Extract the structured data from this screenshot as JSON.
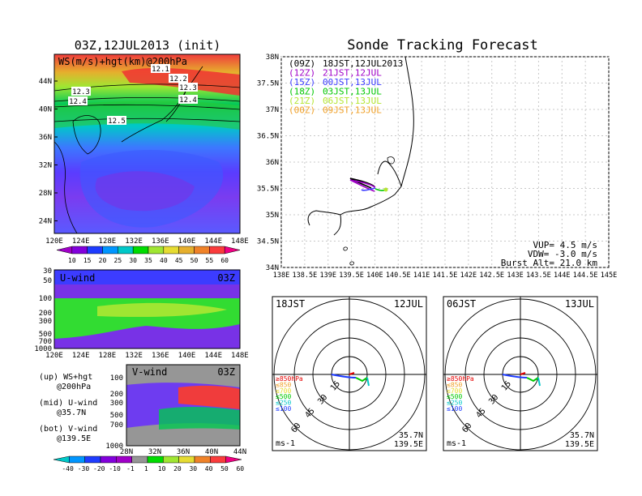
{
  "map_panel": {
    "title": "03Z,12JUL2013 (init)",
    "label": "WS(m/s)+hgt(km)@200hPa",
    "lat_ticks": [
      "44N",
      "40N",
      "36N",
      "32N",
      "28N",
      "24N"
    ],
    "lon_ticks": [
      "120E",
      "124E",
      "128E",
      "132E",
      "136E",
      "140E",
      "144E",
      "148E"
    ],
    "contour_labels": [
      "12.1",
      "12.2",
      "12.3",
      "12.3",
      "12.4",
      "12.4",
      "12.5"
    ],
    "colorbar": [
      "10",
      "15",
      "20",
      "25",
      "30",
      "35",
      "40",
      "45",
      "50",
      "55",
      "60"
    ],
    "colorbar_colors": [
      "#a000c8",
      "#8200dc",
      "#1e3cff",
      "#0096ff",
      "#00c8c8",
      "#00dc00",
      "#a0e632",
      "#e6dc32",
      "#e6af2d",
      "#f08228",
      "#fa3c3c",
      "#f00082"
    ]
  },
  "uwind_panel": {
    "label": "U-wind",
    "time": "03Z",
    "p_ticks": [
      "30",
      "50",
      "100",
      "200",
      "300",
      "500",
      "700",
      "1000"
    ],
    "lon_ticks": [
      "120E",
      "124E",
      "128E",
      "132E",
      "136E",
      "140E",
      "144E",
      "148E"
    ]
  },
  "vwind_panel": {
    "label": "V-wind",
    "time": "03Z",
    "p_ticks": [
      "100",
      "200",
      "300",
      "500",
      "700",
      "1000"
    ],
    "lat_ticks": [
      "28N",
      "32N",
      "36N",
      "40N",
      "44N"
    ]
  },
  "legend_text": {
    "up1": "(up) WS+hgt",
    "up2": "@200hPa",
    "mid1": "(mid) U-wind",
    "mid2": "@35.7N",
    "bot1": "(bot) V-wind",
    "bot2": "@139.5E"
  },
  "wind_colorbar": {
    "labels": [
      "-40",
      "-30",
      "-20",
      "-10",
      "-1",
      "1",
      "10",
      "20",
      "30",
      "40",
      "50",
      "60"
    ],
    "colors": [
      "#00c8c8",
      "#0096ff",
      "#1e3cff",
      "#8200dc",
      "#a000c8",
      "#969696",
      "#00dc00",
      "#a0e632",
      "#e6dc32",
      "#f08228",
      "#fa3c3c",
      "#f00082"
    ]
  },
  "tracking": {
    "title": "Sonde Tracking Forecast",
    "lat_ticks": [
      "38N",
      "37.5N",
      "37N",
      "36.5N",
      "36N",
      "35.5N",
      "35N",
      "34.5N",
      "34N"
    ],
    "lon_ticks": [
      "138E",
      "138.5E",
      "139E",
      "139.5E",
      "140E",
      "140.5E",
      "141E",
      "141.5E",
      "142E",
      "142.5E",
      "143E",
      "143.5E",
      "144E",
      "144.5E",
      "145E"
    ],
    "launches": [
      {
        "utc": "(09Z)",
        "jst": "18JST,12JUL2013",
        "color": "#000000"
      },
      {
        "utc": "(12Z)",
        "jst": "21JST,12JUL",
        "color": "#a000c8"
      },
      {
        "utc": "(15Z)",
        "jst": "00JST,13JUL",
        "color": "#3c3cff"
      },
      {
        "utc": "(18Z)",
        "jst": "03JST,13JUL",
        "color": "#00c800"
      },
      {
        "utc": "(21Z)",
        "jst": "06JST,13JUL",
        "color": "#b4e632"
      },
      {
        "utc": "(00Z)",
        "jst": "09JST,13JUL",
        "color": "#f0a028"
      }
    ],
    "vup": "VUP= 4.5 m/s",
    "vdw": "VDW= -3.0 m/s",
    "burst": "Burst Alt= 21.0 km"
  },
  "hodograph_left": {
    "time": "18JST",
    "date": "12JUL",
    "ring_labels": [
      "15",
      "30",
      "45",
      "60"
    ],
    "levels": [
      {
        "text": "≥850hPa",
        "color": "#e60000"
      },
      {
        "text": "≤850",
        "color": "#f0a028"
      },
      {
        "text": "≤700",
        "color": "#e6dc32"
      },
      {
        "text": "≤500",
        "color": "#00c800"
      },
      {
        "text": "≤250",
        "color": "#00c8c8"
      },
      {
        "text": "≤100",
        "color": "#1e3cff"
      }
    ],
    "unit": "ms-1",
    "lat": "35.7N",
    "lon": "139.5E"
  },
  "hodograph_right": {
    "time": "06JST",
    "date": "13JUL",
    "ring_labels": [
      "15",
      "30",
      "45",
      "60"
    ],
    "levels": [
      {
        "text": "≥850hPa",
        "color": "#e60000"
      },
      {
        "text": "≤850",
        "color": "#f0a028"
      },
      {
        "text": "≤700",
        "color": "#e6dc32"
      },
      {
        "text": "≤500",
        "color": "#00c800"
      },
      {
        "text": "≤250",
        "color": "#00c8c8"
      },
      {
        "text": "≤100",
        "color": "#1e3cff"
      }
    ],
    "unit": "ms-1",
    "lat": "35.7N",
    "lon": "139.5E"
  }
}
